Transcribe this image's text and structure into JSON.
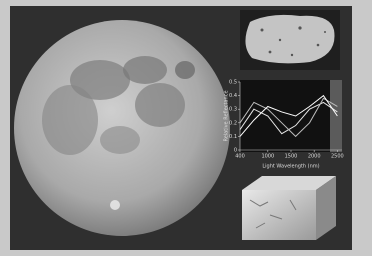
{
  "chart_data": {
    "type": "line",
    "x_label": "Light Wavelength (nm)",
    "y_label": "Relative Reflectance",
    "x": [
      400,
      700,
      1000,
      1300,
      1600,
      1900,
      2200,
      2500
    ],
    "xlim": [
      400,
      2600
    ],
    "xticks": [
      400,
      1000,
      1500,
      2000,
      2500
    ],
    "ylim": [
      0,
      0.5
    ],
    "yticks": [
      0,
      0.1,
      0.2,
      0.3,
      0.4,
      0.5
    ],
    "series": [
      {
        "color": "#e6e6e6",
        "values": [
          0.15,
          0.3,
          0.25,
          0.12,
          0.18,
          0.3,
          0.35,
          0.28
        ]
      },
      {
        "color": "#bdbdbd",
        "values": [
          0.2,
          0.35,
          0.3,
          0.2,
          0.1,
          0.2,
          0.38,
          0.32
        ]
      },
      {
        "color": "#ffffff",
        "values": [
          0.1,
          0.22,
          0.32,
          0.28,
          0.25,
          0.32,
          0.4,
          0.25
        ]
      }
    ]
  }
}
